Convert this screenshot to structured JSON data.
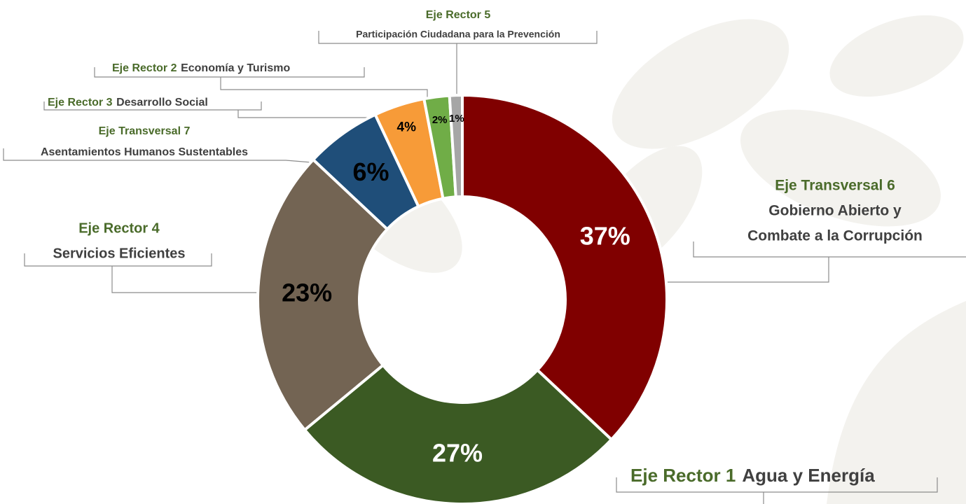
{
  "chart_data": {
    "type": "donut",
    "categories": [
      {
        "prefix": "Eje Transversal 6",
        "name": [
          "Gobierno Abierto y",
          "Combate a la Corrupción"
        ]
      },
      {
        "prefix": "Eje Rector 1",
        "name": [
          "Agua y Energía"
        ]
      },
      {
        "prefix": "Eje Rector 4",
        "name": [
          "Servicios Eficientes"
        ]
      },
      {
        "prefix": "Eje Transversal 7",
        "name": [
          "Asentamientos Humanos Sustentables"
        ]
      },
      {
        "prefix": "Eje Rector 3",
        "name": [
          "Desarrollo Social"
        ]
      },
      {
        "prefix": "Eje Rector 2",
        "name": [
          "Economía y Turismo"
        ]
      },
      {
        "prefix": "Eje Rector 5",
        "name": [
          "Participación Ciudadana para la Prevención"
        ]
      }
    ],
    "values": [
      37,
      27,
      23,
      6,
      4,
      2,
      1
    ],
    "value_labels": [
      "37%",
      "27%",
      "23%",
      "6%",
      "4%",
      "2%",
      "1%"
    ],
    "colors": [
      "#800000",
      "#3b5a23",
      "#736453",
      "#1f4e79",
      "#f79b38",
      "#70ad47",
      "#a6a6a6"
    ],
    "label_colors": [
      "#ffffff",
      "#ffffff",
      "#000000",
      "#000000",
      "#000000",
      "#000000",
      "#000000"
    ],
    "prefix_color": "#4a6b2a",
    "name_color": "#404040"
  }
}
